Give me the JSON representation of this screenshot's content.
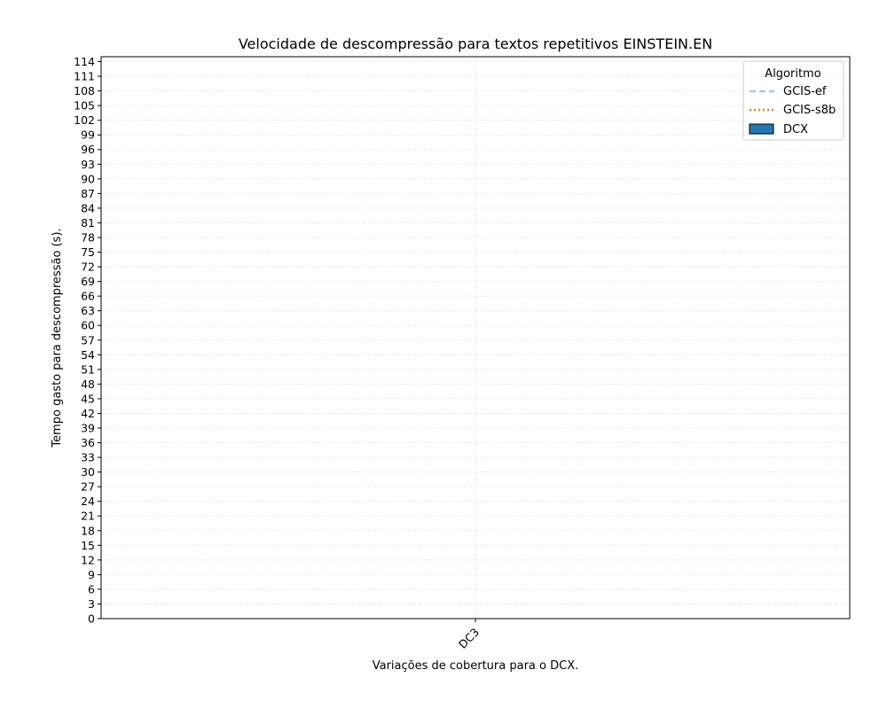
{
  "chart_data": {
    "type": "bar",
    "title": "Velocidade de descompressão para textos repetitivos EINSTEIN.EN",
    "xlabel": "Variações de cobertura para o DCX.",
    "ylabel": "Tempo gasto para descompressão (s).",
    "categories": [
      "DC3"
    ],
    "ylim": [
      0,
      115
    ],
    "yticks": [
      0,
      3,
      6,
      9,
      12,
      15,
      18,
      21,
      24,
      27,
      30,
      33,
      36,
      39,
      42,
      45,
      48,
      51,
      54,
      57,
      60,
      63,
      66,
      69,
      72,
      75,
      78,
      81,
      84,
      87,
      90,
      93,
      96,
      99,
      102,
      105,
      108,
      111,
      114
    ],
    "grid": true,
    "legend": {
      "title": "Algoritmo",
      "placement": "top-right",
      "entries": [
        {
          "label": "GCIS-ef",
          "style": "dashed-line",
          "color": "#a6cbed"
        },
        {
          "label": "GCIS-s8b",
          "style": "dotted-line",
          "color": "#ff7f0e"
        },
        {
          "label": "DCX",
          "style": "patch",
          "color": "#1f77b4"
        }
      ]
    },
    "series": [
      {
        "name": "DCX",
        "values": [
          null
        ]
      }
    ]
  }
}
